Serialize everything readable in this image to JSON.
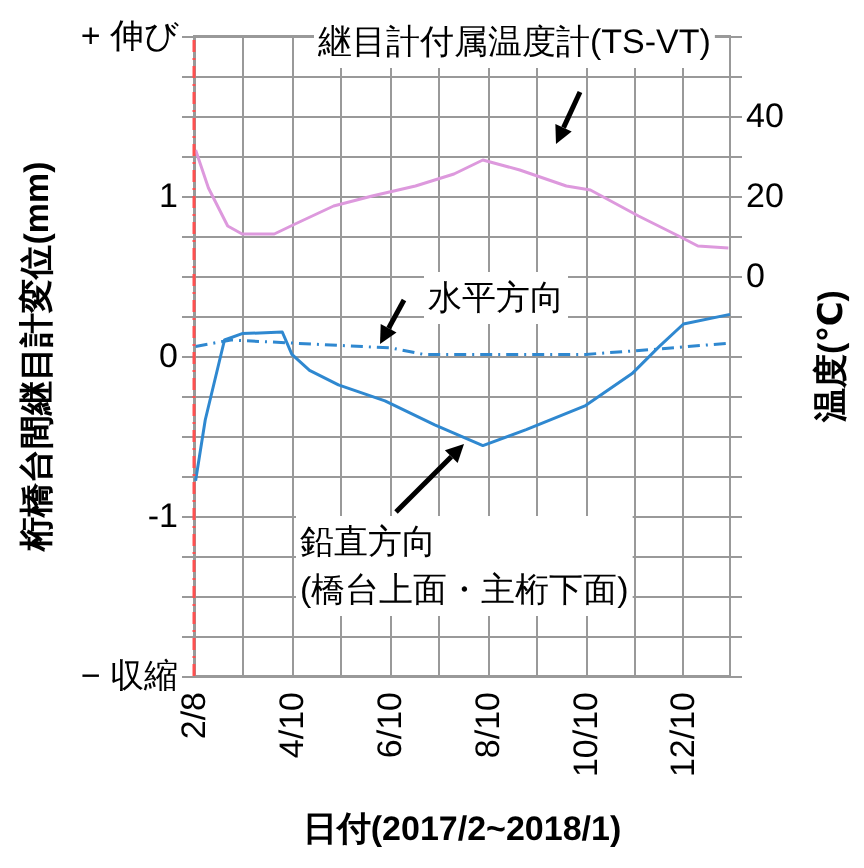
{
  "chart_data": {
    "type": "line",
    "xlabel": "日付(2017/2~2018/1)",
    "ylabel": "桁橋台間継目計変位(mm)",
    "y2label": "温度(℃)",
    "xlim": [
      "2017-02-08",
      "2018-01-08"
    ],
    "xticks": [
      {
        "value": "2017-02-08",
        "label": "2/8"
      },
      {
        "value": "2017-03-10",
        "label": null
      },
      {
        "value": "2017-04-10",
        "label": "4/10"
      },
      {
        "value": "2017-05-10",
        "label": null
      },
      {
        "value": "2017-06-10",
        "label": "6/10"
      },
      {
        "value": "2017-07-10",
        "label": null
      },
      {
        "value": "2017-08-10",
        "label": "8/10"
      },
      {
        "value": "2017-09-10",
        "label": null
      },
      {
        "value": "2017-10-10",
        "label": "10/10"
      },
      {
        "value": "2017-11-10",
        "label": null
      },
      {
        "value": "2017-12-10",
        "label": "12/10"
      }
    ],
    "ylim": [
      -2,
      2
    ],
    "yticks": [
      {
        "value": -2,
        "label": "− 収縮"
      },
      {
        "value": -1.75,
        "label": null
      },
      {
        "value": -1.5,
        "label": null
      },
      {
        "value": -1.25,
        "label": null
      },
      -1,
      {
        "value": -0.75,
        "label": null
      },
      {
        "value": -0.5,
        "label": null
      },
      {
        "value": -0.25,
        "label": null
      },
      0,
      {
        "value": 0.25,
        "label": null
      },
      {
        "value": 0.5,
        "label": null
      },
      {
        "value": 0.75,
        "label": null
      },
      1,
      {
        "value": 1.25,
        "label": null
      },
      {
        "value": 1.5,
        "label": null
      },
      {
        "value": 1.75,
        "label": null
      },
      {
        "value": 2,
        "label": "+ 伸び"
      }
    ],
    "y2lim": [
      -100,
      60
    ],
    "y2ticks": [
      {
        "value": -100,
        "label": null
      },
      {
        "value": -90,
        "label": null
      },
      {
        "value": -80,
        "label": null
      },
      {
        "value": -70,
        "label": null
      },
      {
        "value": -60,
        "label": null
      },
      {
        "value": -50,
        "label": null
      },
      {
        "value": -40,
        "label": null
      },
      {
        "value": -30,
        "label": null
      },
      {
        "value": -20,
        "label": null
      },
      {
        "value": -10,
        "label": null
      },
      0,
      {
        "value": 10,
        "label": null
      },
      20,
      {
        "value": 30,
        "label": null
      },
      40,
      {
        "value": 50,
        "label": null
      },
      {
        "value": 60,
        "label": null
      }
    ],
    "grid": true,
    "marker": "none",
    "series": [
      {
        "color": "#dd99dd",
        "axis": "y2",
        "x": [
          "2017-02-09",
          "2017-02-17",
          "2017-03-01",
          "2017-03-10",
          "2017-03-30",
          "2017-04-12",
          "2017-05-06",
          "2017-05-30",
          "2017-06-26",
          "2017-07-20",
          "2017-08-07",
          "2017-08-30",
          "2017-09-28",
          "2017-10-13",
          "2017-11-12",
          "2017-12-07",
          "2017-12-19",
          "2018-01-07"
        ],
        "values": [
          31.5,
          22,
          12.5,
          10.5,
          10.5,
          13,
          17.5,
          20,
          22.5,
          25.5,
          29,
          26.5,
          22.5,
          21.5,
          15,
          10,
          7.5,
          7
        ]
      },
      {
        "color": "#2f88d0",
        "line_style": "dashed",
        "x": [
          "2017-02-09",
          "2017-03-03",
          "2017-04-12",
          "2017-06-11",
          "2017-07-01",
          "2017-10-10",
          "2017-11-20",
          "2018-01-07"
        ],
        "values": [
          0.06,
          0.1,
          0.08,
          0.05,
          0.01,
          0.01,
          0.04,
          0.08
        ]
      },
      {
        "color": "#2f88d0",
        "line_style": "solid",
        "x": [
          "2017-02-09",
          "2017-02-15",
          "2017-02-27",
          "2017-03-10",
          "2017-04-04",
          "2017-04-10",
          "2017-04-21",
          "2017-05-09",
          "2017-06-07",
          "2017-07-08",
          "2017-08-07",
          "2017-09-03",
          "2017-10-10",
          "2017-11-08",
          "2017-11-25",
          "2017-12-10",
          "2018-01-08"
        ],
        "values": [
          -0.78,
          -0.4,
          0.1,
          0.14,
          0.15,
          0.01,
          -0.09,
          -0.18,
          -0.28,
          -0.43,
          -0.56,
          -0.46,
          -0.31,
          -0.11,
          0.06,
          0.2,
          0.26
        ]
      }
    ],
    "ref_lines": [
      {
        "axis": "x",
        "value": "2017-02-08",
        "color": "#ff5050",
        "line_style": "dashed"
      }
    ],
    "annotations": [
      "継目計付属温度計(TS-VT)",
      "水平方向",
      "鉛直方向\n(橋台上面・主桁下面)"
    ]
  }
}
